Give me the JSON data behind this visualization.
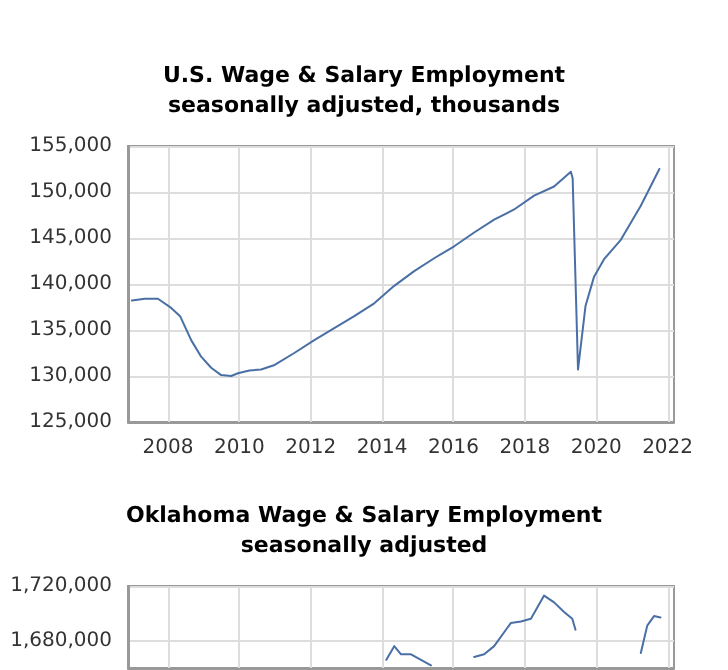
{
  "chart_data": [
    {
      "type": "line",
      "title": "U.S. Wage & Salary Employment",
      "subtitle": "seasonally adjusted, thousands",
      "color": "#4a6fa5",
      "xlim": [
        2006.88,
        2022.18
      ],
      "xticks": [
        2008,
        2010,
        2012,
        2014,
        2016,
        2018,
        2020,
        2022
      ],
      "ylim": [
        125000,
        155000
      ],
      "yticks": [
        {
          "value": 125000,
          "label": "125,000"
        },
        {
          "value": 130000,
          "label": "130,000"
        },
        {
          "value": 135000,
          "label": "135,000"
        },
        {
          "value": 140000,
          "label": "140,000"
        },
        {
          "value": 145000,
          "label": "145,000"
        },
        {
          "value": 150000,
          "label": "150,000"
        },
        {
          "value": 155000,
          "label": "155,000"
        }
      ],
      "grid": true,
      "marker": "none",
      "x": [
        2006.99,
        2007.35,
        2007.72,
        2008.09,
        2008.34,
        2008.65,
        2008.93,
        2009.21,
        2009.49,
        2009.77,
        2009.96,
        2010.28,
        2010.61,
        2010.99,
        2011.54,
        2012.1,
        2012.66,
        2013.22,
        2013.78,
        2014.34,
        2014.9,
        2015.46,
        2016.02,
        2016.58,
        2017.14,
        2017.7,
        2018.26,
        2018.82,
        2019.29,
        2019.34,
        2019.49,
        2019.7,
        2019.94,
        2020.22,
        2020.69,
        2021.25,
        2021.77
      ],
      "values": [
        138200,
        138400,
        138400,
        137400,
        136500,
        133900,
        132100,
        130900,
        130100,
        130000,
        130300,
        130600,
        130700,
        131200,
        132500,
        133900,
        135200,
        136500,
        137900,
        139800,
        141400,
        142800,
        144100,
        145600,
        147000,
        148100,
        149600,
        150600,
        152200,
        151500,
        130700,
        137600,
        140800,
        142700,
        144800,
        148500,
        152500
      ]
    },
    {
      "type": "line",
      "title": "Oklahoma Wage & Salary Employment",
      "subtitle": "seasonally adjusted",
      "color": "#4a6fa5",
      "xlim": [
        2006.88,
        2022.18
      ],
      "xticks": [
        2008,
        2010,
        2012,
        2014,
        2016,
        2018,
        2020,
        2022
      ],
      "ylim": [
        1660000,
        1720000
      ],
      "yticks": [
        {
          "value": 1680000,
          "label": "1,680,000"
        },
        {
          "value": 1720000,
          "label": "1,720,000"
        }
      ],
      "grid": true,
      "marker": "none",
      "tick_labels": "y",
      "x": [
        2014.12,
        2014.34,
        2014.53,
        2014.81,
        2015.09,
        2015.37,
        2015.6,
        2016.58,
        2016.86,
        2017.14,
        2017.61,
        2017.89,
        2018.17,
        2018.54,
        2018.82,
        2019.1,
        2019.33,
        2019.42,
        2019.49,
        2021.25,
        2021.43,
        2021.62,
        2021.8
      ],
      "values": [
        1666000,
        1676000,
        1670000,
        1670000,
        1666000,
        1662000,
        null,
        1668000,
        1670000,
        1676000,
        1693000,
        1694000,
        1696000,
        1713000,
        1708000,
        1701000,
        1696000,
        1688000,
        null,
        1671000,
        1691000,
        1698000,
        1697000
      ]
    }
  ]
}
